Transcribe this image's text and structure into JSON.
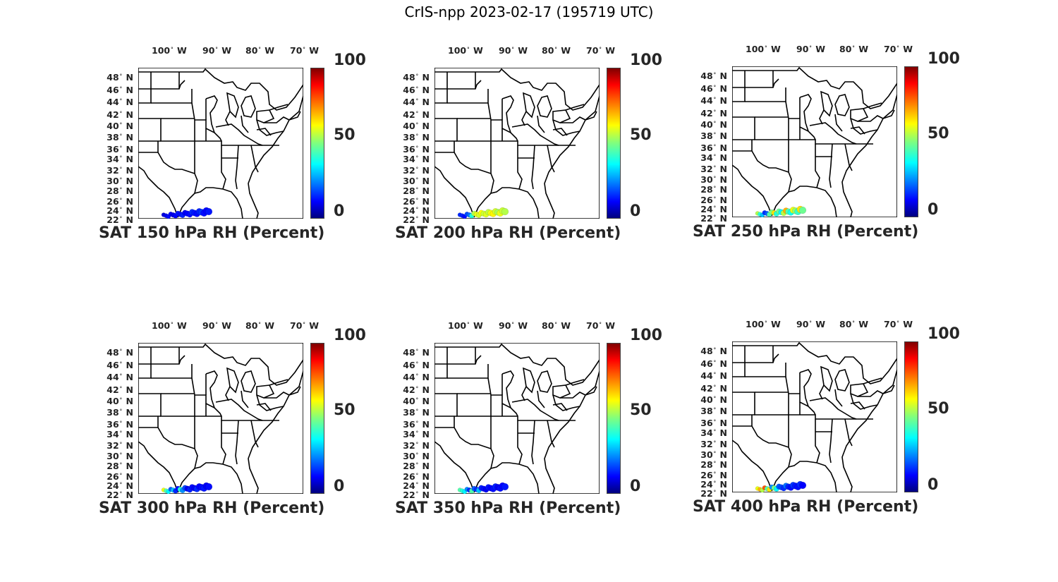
{
  "figure_title": "CrIS-npp 2023-02-17 (195719 UTC)",
  "lon_labels": [
    "100",
    "90",
    "80",
    "70"
  ],
  "lon_suffix": "W",
  "lat_labels": [
    "48",
    "46",
    "44",
    "42",
    "40",
    "38",
    "36",
    "34",
    "32",
    "30",
    "28",
    "26",
    "24",
    "22"
  ],
  "lat_suffix": "N",
  "colorbar": {
    "ticks": [
      "100",
      "50",
      "0"
    ],
    "range": [
      0,
      100
    ],
    "colormap": "jet"
  },
  "colors": {
    "map_lines": "#000000",
    "text": "#262626"
  },
  "panels": [
    {
      "title": "SAT 150 hPa RH (Percent)",
      "pressure_hPa": 150,
      "rh_values": [
        8,
        10,
        12,
        10,
        9,
        11,
        13,
        12,
        14,
        10,
        11,
        12,
        15,
        13,
        12,
        14,
        16,
        12,
        11,
        13
      ]
    },
    {
      "title": "SAT 200 hPa RH (Percent)",
      "pressure_hPa": 200,
      "rh_values": [
        15,
        14,
        12,
        18,
        22,
        40,
        55,
        60,
        58,
        62,
        57,
        59,
        56,
        61,
        63,
        58,
        54,
        60,
        57,
        55
      ]
    },
    {
      "title": "SAT 250 hPa RH (Percent)",
      "pressure_hPa": 250,
      "rh_values": [
        55,
        40,
        30,
        15,
        20,
        45,
        50,
        65,
        40,
        48,
        35,
        55,
        70,
        45,
        38,
        60,
        52,
        42,
        65,
        48
      ]
    },
    {
      "title": "SAT 300 hPa RH (Percent)",
      "pressure_hPa": 300,
      "rh_values": [
        60,
        45,
        35,
        20,
        30,
        15,
        12,
        40,
        25,
        18,
        10,
        14,
        12,
        10,
        15,
        11,
        12,
        13,
        10,
        12
      ]
    },
    {
      "title": "SAT 350 hPa RH (Percent)",
      "pressure_hPa": 350,
      "rh_values": [
        45,
        40,
        35,
        25,
        15,
        45,
        20,
        15,
        30,
        14,
        12,
        10,
        13,
        11,
        12,
        14,
        10,
        12,
        11,
        13
      ]
    },
    {
      "title": "SAT 400 hPa RH (Percent)",
      "pressure_hPa": 400,
      "rh_values": [
        60,
        70,
        55,
        80,
        45,
        65,
        25,
        50,
        35,
        20,
        18,
        15,
        22,
        14,
        12,
        16,
        13,
        12,
        15,
        11
      ]
    }
  ]
}
